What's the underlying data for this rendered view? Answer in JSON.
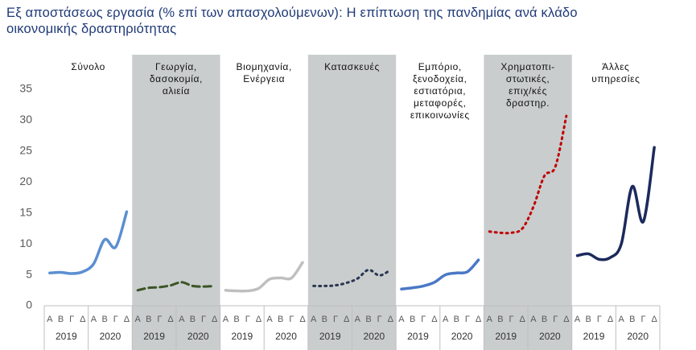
{
  "chart_data": {
    "type": "line",
    "title": "Εξ αποστάσεως εργασία (% επί των απασχολούμενων):  Η επίπτωση της πανδημίας ανά κλάδο οικονομικής δραστηριότητας",
    "ylim": [
      0,
      35
    ],
    "yticks": [
      0,
      5,
      10,
      15,
      20,
      25,
      30,
      35
    ],
    "quarters": [
      "Α",
      "Β",
      "Γ",
      "Δ"
    ],
    "years": [
      "2019",
      "2020"
    ],
    "series": [
      {
        "name": "Σύνολο",
        "color": "#5b8fd1",
        "style": "solid",
        "shaded": false,
        "values": [
          5.3,
          5.4,
          5.2,
          5.5,
          6.8,
          10.7,
          9.5,
          15.2
        ]
      },
      {
        "name": "Γεωργία,\nδασοκομία,\nαλιεία",
        "color": "#3b5526",
        "style": "dashed",
        "shaded": true,
        "values": [
          2.5,
          2.9,
          3.0,
          3.3,
          3.8,
          3.2,
          3.1,
          3.2
        ]
      },
      {
        "name": "Βιομηχανία,\nΕνέργεια",
        "color": "#bfbfbf",
        "style": "solid",
        "shaded": false,
        "values": [
          2.5,
          2.4,
          2.4,
          2.8,
          4.3,
          4.5,
          4.5,
          7.0
        ]
      },
      {
        "name": "Κατασκευές",
        "color": "#2a3550",
        "style": "dotted",
        "shaded": true,
        "values": [
          3.2,
          3.2,
          3.3,
          3.7,
          4.4,
          5.8,
          4.9,
          5.8
        ]
      },
      {
        "name": "Εμπόριο,\nξενοδοχεία,\nεστιατόρια,\nμεταφορές,\nεπικοινωνίες",
        "color": "#4a78c6",
        "style": "solid",
        "shaded": false,
        "values": [
          2.7,
          2.9,
          3.2,
          3.8,
          5.0,
          5.3,
          5.5,
          7.4
        ]
      },
      {
        "name": "Χρηματοπι-\nστωτικές,\nεπιχ/κές\nδραστηρ.",
        "color": "#c00000",
        "style": "dotted",
        "shaded": true,
        "values": [
          12.0,
          11.8,
          11.8,
          12.5,
          16.0,
          21.0,
          22.5,
          30.7
        ]
      },
      {
        "name": "Άλλες\nυπηρεσίες",
        "color": "#1c2a5c",
        "style": "solid",
        "shaded": false,
        "values": [
          8.1,
          8.4,
          7.5,
          7.8,
          10.0,
          19.3,
          13.6,
          25.6
        ]
      }
    ]
  }
}
